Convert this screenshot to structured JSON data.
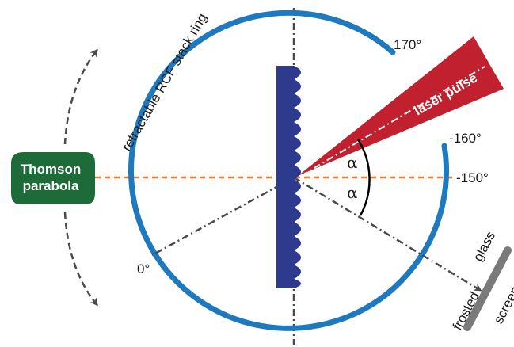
{
  "labels": {
    "ring": "retractable RCF stack ring",
    "thomson_line1": "Thomson",
    "thomson_line2": "parabola",
    "laser": "laser pulse",
    "angle_top": "α",
    "angle_bottom": "α",
    "deg_170": "170°",
    "deg_minus160": "-160°",
    "deg_minus150": "-150°",
    "deg_0": "0°",
    "screen_word1": "frosted",
    "screen_word2": "glass",
    "screen_word3": "screen"
  },
  "colors": {
    "ring": "#1f79bf",
    "target": "#2e3a8e",
    "laser": "#c1212e",
    "thomson": "#1e6b3a",
    "axis": "#ee7a2a",
    "dashdot": "#4a4a4a",
    "screen": "#7a7a7a"
  },
  "icons": {
    "rotation_arrows": "curved-double-arrow"
  }
}
